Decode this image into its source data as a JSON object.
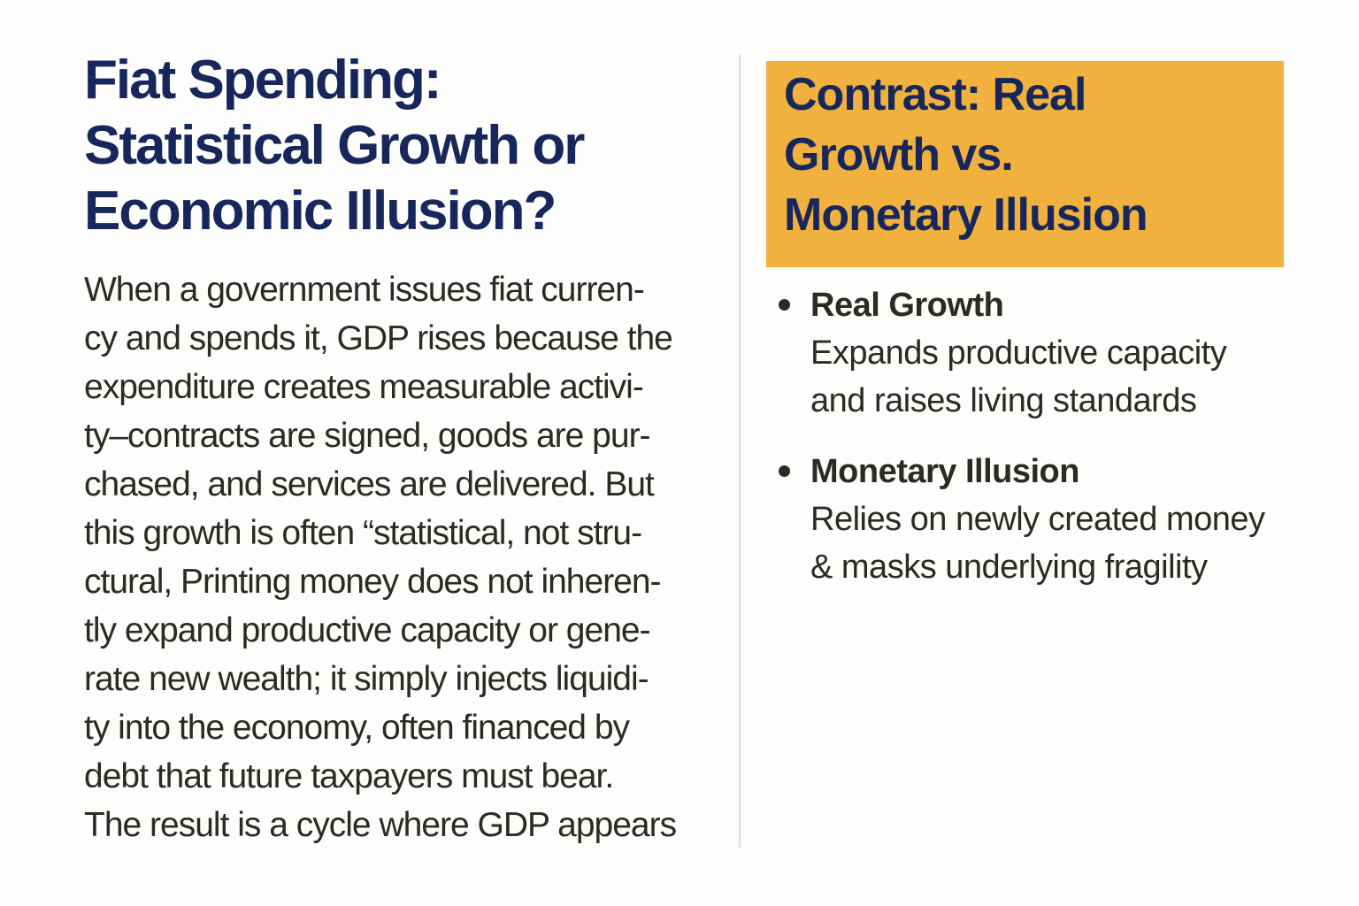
{
  "left": {
    "title": "Fiat Spending:\nStatistical Growth or\nEconomic Illusion?",
    "paragraph": "When a government issues fiat curren-\ncy and spends it, GDP rises because the\nexpenditure creates measurable activi-\nty–contracts are signed, goods are pur-\nchased, and services are delivered. But\nthis growth is often “statistical, not stru-\nctural, Printing money does not inheren-\ntly expand productive capacity or gene-\nrate new wealth; it simply injects liquidi-\nty into the economy, often financed by\ndebt that future taxpayers must bear.\nThe result is a cycle where GDP appears"
  },
  "right": {
    "heading": "Contrast: Real\nGrowth vs.\nMonetary Illusion",
    "bullets": [
      {
        "label": "Real Growth",
        "description": "Expands productive capacity\nand raises living standards"
      },
      {
        "label": "Monetary Illusion",
        "description": "Relies on newly created money\n& masks underlying fragility"
      }
    ]
  },
  "colors": {
    "accent_highlight": "#F1B13E",
    "heading_navy": "#17265B",
    "body_text": "#2D2925",
    "divider": "#DBDBDB",
    "background": "#FDFDFC"
  }
}
